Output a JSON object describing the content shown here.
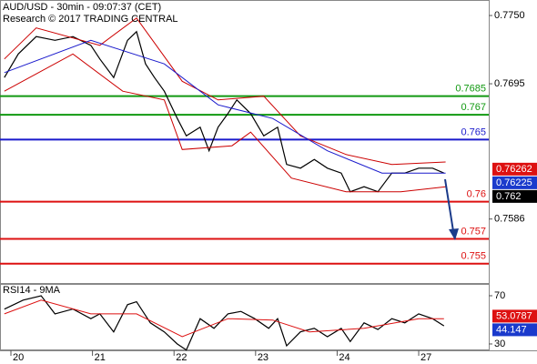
{
  "chart_data": [
    {
      "type": "line",
      "title": "AUD/USD - 30min - 09:07:37 (CET)",
      "subtitle": "Research © 2017 TRADING CENTRAL",
      "xlim": [
        -0.134,
        5.859
      ],
      "ylim": [
        0.75337,
        0.77625
      ],
      "yticks": [
        {
          "value": 0.775,
          "label": "0.7750"
        },
        0.7695,
        0.7586
      ],
      "series": [
        {
          "color": "#000000",
          "x": [
            -0.08,
            0.09,
            0.31,
            0.54,
            0.76,
            0.98,
            1.09,
            1.26,
            1.43,
            1.54,
            1.65,
            1.76,
            1.88,
            2.04,
            2.15,
            2.32,
            2.43,
            2.54,
            2.66,
            2.77,
            2.94,
            3.1,
            3.27,
            3.38,
            3.55,
            3.72,
            3.88,
            4.05,
            4.16,
            4.33,
            4.5,
            4.67,
            4.83,
            5.0,
            5.17,
            5.31
          ],
          "values": [
            0.77,
            0.7719,
            0.7733,
            0.773,
            0.7733,
            0.7726,
            0.7715,
            0.77,
            0.773,
            0.7737,
            0.7711,
            0.77,
            0.7689,
            0.7667,
            0.7653,
            0.766,
            0.7641,
            0.766,
            0.7671,
            0.7682,
            0.7671,
            0.7653,
            0.766,
            0.763,
            0.7627,
            0.7634,
            0.7627,
            0.7623,
            0.7608,
            0.7612,
            0.7608,
            0.7623,
            0.7623,
            0.7627,
            0.7627,
            0.7623
          ]
        },
        {
          "color": "#cc0000",
          "x": [
            -0.08,
            0.31,
            1.09,
            1.54,
            2.1,
            2.54,
            3.1,
            3.55,
            4.11,
            4.67,
            5.33
          ],
          "values": [
            0.7715,
            0.774,
            0.7726,
            0.7748,
            0.7697,
            0.7682,
            0.7685,
            0.7653,
            0.7638,
            0.763,
            0.7632
          ]
        },
        {
          "color": "#cc0000",
          "x": [
            -0.08,
            0.76,
            1.37,
            1.88,
            2.1,
            2.71,
            2.94,
            3.44,
            4.11,
            4.78,
            5.33
          ],
          "values": [
            0.7689,
            0.7719,
            0.7689,
            0.7682,
            0.7642,
            0.7645,
            0.7656,
            0.7619,
            0.7608,
            0.7608,
            0.7612
          ]
        },
        {
          "color": "#1a1acc",
          "x": [
            -0.08,
            0.98,
            1.88,
            2.54,
            3.21,
            3.88,
            4.55,
            5.33
          ],
          "values": [
            0.7704,
            0.773,
            0.7711,
            0.7678,
            0.7667,
            0.7641,
            0.7623,
            0.7623
          ]
        }
      ],
      "levels": [
        {
          "value": 0.7685,
          "color": "#119911"
        },
        {
          "value": 0.767,
          "color": "#119911"
        },
        {
          "value": 0.765,
          "color": "#1a1acc"
        },
        {
          "value": 0.76,
          "color": "#dd1111"
        },
        {
          "value": 0.757,
          "color": "#dd1111"
        },
        {
          "value": 0.755,
          "color": "#dd1111"
        }
      ],
      "price_tags": [
        {
          "value": 0.76262,
          "color": "#dd1111"
        },
        {
          "value": 0.76225,
          "color": "#1a3acc"
        },
        {
          "value": 0.762,
          "color": "#000000"
        }
      ]
    },
    {
      "type": "line",
      "title": "RSI14 - 9MA",
      "xlim": [
        -0.134,
        5.859
      ],
      "ylim": [
        24.7,
        79.8
      ],
      "yticks": [
        70,
        30
      ],
      "xticks": [
        {
          "value": 0,
          "label": "20"
        },
        {
          "value": 1,
          "label": "21"
        },
        {
          "value": 2,
          "label": "22"
        },
        {
          "value": 3,
          "label": "23"
        },
        {
          "value": 4,
          "label": "24"
        },
        {
          "value": 5,
          "label": "27"
        }
      ],
      "series": [
        {
          "color": "#000000",
          "x": [
            -0.08,
            0.15,
            0.37,
            0.54,
            0.76,
            0.98,
            1.09,
            1.26,
            1.43,
            1.54,
            1.71,
            1.88,
            2.04,
            2.15,
            2.32,
            2.49,
            2.66,
            2.82,
            2.99,
            3.16,
            3.27,
            3.38,
            3.55,
            3.72,
            3.88,
            4.05,
            4.16,
            4.33,
            4.5,
            4.67,
            4.83,
            5.0,
            5.17,
            5.31
          ],
          "values": [
            58.9,
            66.4,
            70,
            55,
            59,
            51,
            55,
            40,
            62.6,
            65,
            47.5,
            40,
            30,
            25,
            51,
            43,
            55,
            57,
            51,
            43,
            51,
            28.5,
            40,
            43,
            36,
            43,
            32,
            47.5,
            42,
            51,
            47.5,
            55,
            51,
            45
          ]
        },
        {
          "color": "#dd1111",
          "x": [
            -0.08,
            0.37,
            0.98,
            1.54,
            2.1,
            2.66,
            3.21,
            3.66,
            4.33,
            5.0,
            5.31
          ],
          "values": [
            55,
            66.4,
            55,
            55,
            36,
            51,
            49.8,
            40,
            43,
            51,
            51
          ]
        }
      ],
      "price_tags": [
        {
          "value": 53.0787,
          "color": "#dd1111"
        },
        {
          "value": 44.147,
          "color": "#1a3acc"
        }
      ]
    }
  ]
}
